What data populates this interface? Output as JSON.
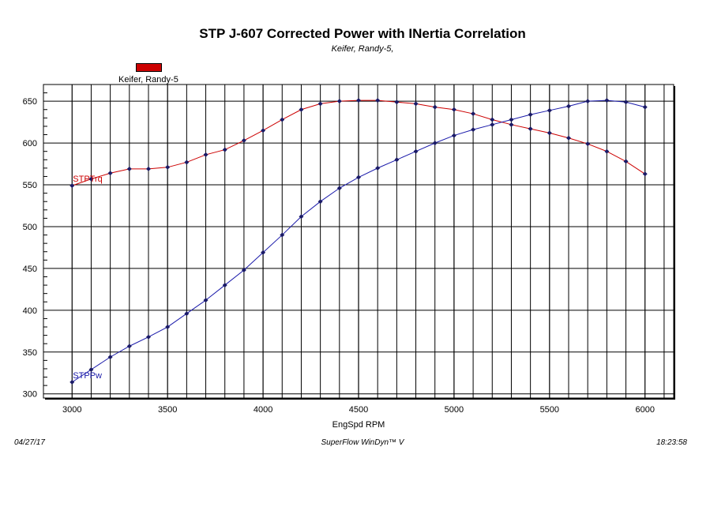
{
  "chart_data": {
    "type": "line",
    "title": "STP J-607 Corrected Power with INertia Correlation",
    "subtitle": "Keifer, Randy-5,",
    "legend": "Keifer, Randy-5",
    "xlabel": "EngSpd RPM",
    "ylabel": "",
    "xlim": [
      2850,
      6150
    ],
    "ylim": [
      295,
      670
    ],
    "x_ticks": [
      3000,
      3500,
      4000,
      4500,
      5000,
      5500,
      6000
    ],
    "y_ticks": [
      300,
      350,
      400,
      450,
      500,
      550,
      600,
      650
    ],
    "x": [
      3000,
      3100,
      3200,
      3300,
      3400,
      3500,
      3600,
      3700,
      3800,
      3900,
      4000,
      4100,
      4200,
      4300,
      4400,
      4500,
      4600,
      4700,
      4800,
      4900,
      5000,
      5100,
      5200,
      5300,
      5400,
      5500,
      5600,
      5700,
      5800,
      5900,
      6000
    ],
    "series": [
      {
        "name": "STPTrq",
        "color": "#cc0000",
        "values": [
          549,
          557,
          564,
          569,
          569,
          571,
          577,
          586,
          592,
          603,
          615,
          628,
          640,
          647,
          650,
          651,
          651,
          649,
          647,
          643,
          640,
          635,
          628,
          622,
          617,
          612,
          606,
          599,
          590,
          578,
          563
        ]
      },
      {
        "name": "STPPw",
        "color": "#1a1aaa",
        "values": [
          314,
          329,
          344,
          357,
          368,
          380,
          396,
          412,
          430,
          448,
          469,
          490,
          512,
          530,
          546,
          559,
          570,
          580,
          590,
          600,
          609,
          616,
          622,
          628,
          634,
          639,
          644,
          650,
          651,
          649,
          643
        ]
      }
    ]
  },
  "footer": {
    "date": "04/27/17",
    "software": "SuperFlow WinDyn™ V",
    "time": "18:23:58"
  }
}
